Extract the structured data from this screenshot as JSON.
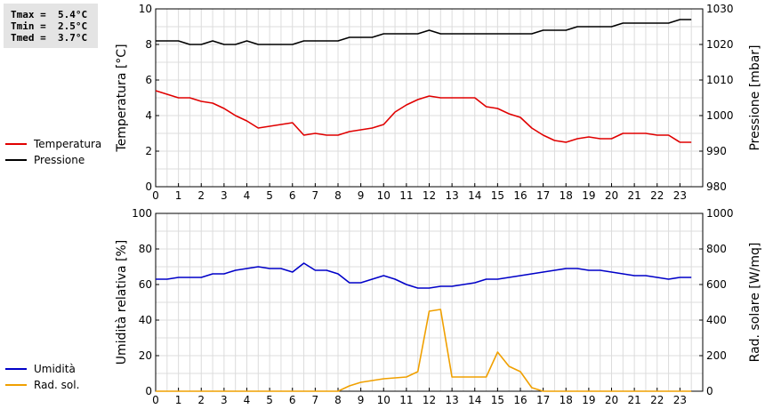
{
  "stats": {
    "tmax": "Tmax =  5.4°C",
    "tmin": "Tmin =  2.5°C",
    "tmed": "Tmed =  3.7°C"
  },
  "chart_data": [
    {
      "type": "line",
      "x": [
        0,
        0.5,
        1,
        1.5,
        2,
        2.5,
        3,
        3.5,
        4,
        4.5,
        5,
        5.5,
        6,
        6.5,
        7,
        7.5,
        8,
        8.5,
        9,
        9.5,
        10,
        10.5,
        11,
        11.5,
        12,
        12.5,
        13,
        13.5,
        14,
        14.5,
        15,
        15.5,
        16,
        16.5,
        17,
        17.5,
        18,
        18.5,
        19,
        19.5,
        20,
        20.5,
        21,
        21.5,
        22,
        22.5,
        23,
        23.5
      ],
      "xlim": [
        0,
        24
      ],
      "xticks": [
        "0",
        "1",
        "2",
        "3",
        "4",
        "5",
        "6",
        "7",
        "8",
        "9",
        "10",
        "11",
        "12",
        "13",
        "14",
        "15",
        "16",
        "17",
        "18",
        "19",
        "20",
        "21",
        "22",
        "23"
      ],
      "grid": true,
      "legend_position": "left",
      "left_axis": {
        "label": "Temperatura [°C]",
        "range": [
          0,
          10
        ],
        "ticks": [
          "0",
          "2",
          "4",
          "6",
          "8",
          "10"
        ]
      },
      "right_axis": {
        "label": "Pressione [mbar]",
        "range": [
          980,
          1030
        ],
        "ticks": [
          "980",
          "990",
          "1000",
          "1010",
          "1020",
          "1030"
        ]
      },
      "series": [
        {
          "name": "Temperatura",
          "axis": "left",
          "color": "#e00000",
          "values": [
            5.4,
            5.2,
            5.0,
            5.0,
            4.8,
            4.7,
            4.4,
            4.0,
            3.7,
            3.3,
            3.4,
            3.5,
            3.6,
            2.9,
            3.0,
            2.9,
            2.9,
            3.1,
            3.2,
            3.3,
            3.5,
            4.2,
            4.6,
            4.9,
            5.1,
            5.0,
            5.0,
            5.0,
            5.0,
            4.5,
            4.4,
            4.1,
            3.9,
            3.3,
            2.9,
            2.6,
            2.5,
            2.7,
            2.8,
            2.7,
            2.7,
            3.0,
            3.0,
            3.0,
            2.9,
            2.9,
            2.5,
            2.5
          ]
        },
        {
          "name": "Pressione",
          "axis": "right",
          "color": "#000000",
          "values": [
            1021,
            1021,
            1021,
            1020,
            1020,
            1021,
            1020,
            1020,
            1021,
            1020,
            1020,
            1020,
            1020,
            1021,
            1021,
            1021,
            1021,
            1022,
            1022,
            1022,
            1023,
            1023,
            1023,
            1023,
            1024,
            1023,
            1023,
            1023,
            1023,
            1023,
            1023,
            1023,
            1023,
            1023,
            1024,
            1024,
            1024,
            1025,
            1025,
            1025,
            1025,
            1026,
            1026,
            1026,
            1026,
            1026,
            1027,
            1027
          ]
        }
      ]
    },
    {
      "type": "line",
      "x": [
        0,
        0.5,
        1,
        1.5,
        2,
        2.5,
        3,
        3.5,
        4,
        4.5,
        5,
        5.5,
        6,
        6.5,
        7,
        7.5,
        8,
        8.5,
        9,
        9.5,
        10,
        10.5,
        11,
        11.5,
        12,
        12.5,
        13,
        13.5,
        14,
        14.5,
        15,
        15.5,
        16,
        16.5,
        17,
        17.5,
        18,
        18.5,
        19,
        19.5,
        20,
        20.5,
        21,
        21.5,
        22,
        22.5,
        23,
        23.5
      ],
      "xlim": [
        0,
        24
      ],
      "xticks": [
        "0",
        "1",
        "2",
        "3",
        "4",
        "5",
        "6",
        "7",
        "8",
        "9",
        "10",
        "11",
        "12",
        "13",
        "14",
        "15",
        "16",
        "17",
        "18",
        "19",
        "20",
        "21",
        "22",
        "23"
      ],
      "grid": true,
      "legend_position": "left",
      "left_axis": {
        "label": "Umidità relativa [%]",
        "range": [
          0,
          100
        ],
        "ticks": [
          "0",
          "20",
          "40",
          "60",
          "80",
          "100"
        ]
      },
      "right_axis": {
        "label": "Rad. solare [W/mq]",
        "range": [
          0,
          1000
        ],
        "ticks": [
          "0",
          "200",
          "400",
          "600",
          "800",
          "1000"
        ]
      },
      "series": [
        {
          "name": "Umidità",
          "axis": "left",
          "color": "#0000c8",
          "values": [
            63,
            63,
            64,
            64,
            64,
            66,
            66,
            68,
            69,
            70,
            69,
            69,
            67,
            72,
            68,
            68,
            66,
            61,
            61,
            63,
            65,
            63,
            60,
            58,
            58,
            59,
            59,
            60,
            61,
            63,
            63,
            64,
            65,
            66,
            67,
            68,
            69,
            69,
            68,
            68,
            67,
            66,
            65,
            65,
            64,
            63,
            64,
            64
          ]
        },
        {
          "name": "Rad. sol.",
          "axis": "right",
          "color": "#f0a000",
          "values": [
            0,
            0,
            0,
            0,
            0,
            0,
            0,
            0,
            0,
            0,
            0,
            0,
            0,
            0,
            0,
            0,
            0,
            30,
            50,
            60,
            70,
            75,
            80,
            110,
            450,
            460,
            80,
            80,
            80,
            80,
            220,
            140,
            110,
            20,
            0,
            0,
            0,
            0,
            0,
            0,
            0,
            0,
            0,
            0,
            0,
            0,
            0,
            0
          ]
        }
      ]
    }
  ]
}
